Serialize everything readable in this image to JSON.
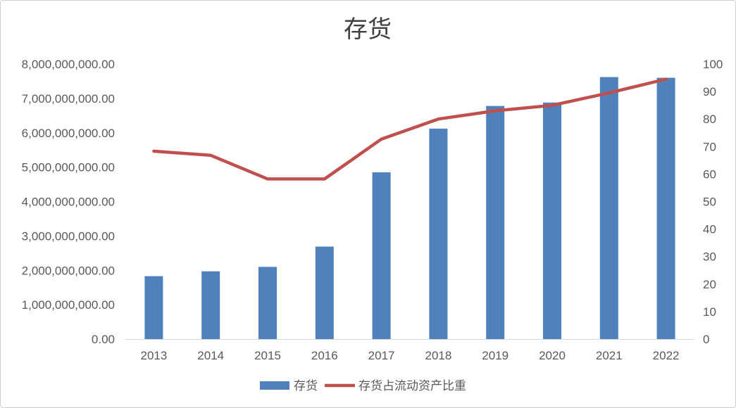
{
  "chart_data": {
    "type": "bar",
    "title": "存货",
    "categories": [
      "2013",
      "2014",
      "2015",
      "2016",
      "2017",
      "2018",
      "2019",
      "2020",
      "2021",
      "2022"
    ],
    "series": [
      {
        "name": "存货",
        "type": "bar",
        "axis": "left",
        "color": "#4F81BD",
        "values": [
          1830000000,
          1970000000,
          2100000000,
          2690000000,
          4850000000,
          6120000000,
          6780000000,
          6880000000,
          7620000000,
          7600000000
        ]
      },
      {
        "name": "存货占流动资产比重",
        "type": "line",
        "axis": "right",
        "color": "#C0504D",
        "values": [
          68.3,
          66.8,
          58.2,
          58.2,
          72.7,
          80,
          83,
          85,
          89.5,
          94.5
        ]
      }
    ],
    "y_left": {
      "ylim": [
        0,
        8000000000
      ],
      "ticks": [
        "0.00",
        "1,000,000,000.00",
        "2,000,000,000.00",
        "3,000,000,000.00",
        "4,000,000,000.00",
        "5,000,000,000.00",
        "6,000,000,000.00",
        "7,000,000,000.00",
        "8,000,000,000.00"
      ]
    },
    "y_right": {
      "ylim": [
        0,
        100
      ],
      "ticks": [
        "0",
        "10",
        "20",
        "30",
        "40",
        "50",
        "60",
        "70",
        "80",
        "90",
        "100"
      ]
    },
    "grid": false,
    "legend_position": "bottom"
  }
}
